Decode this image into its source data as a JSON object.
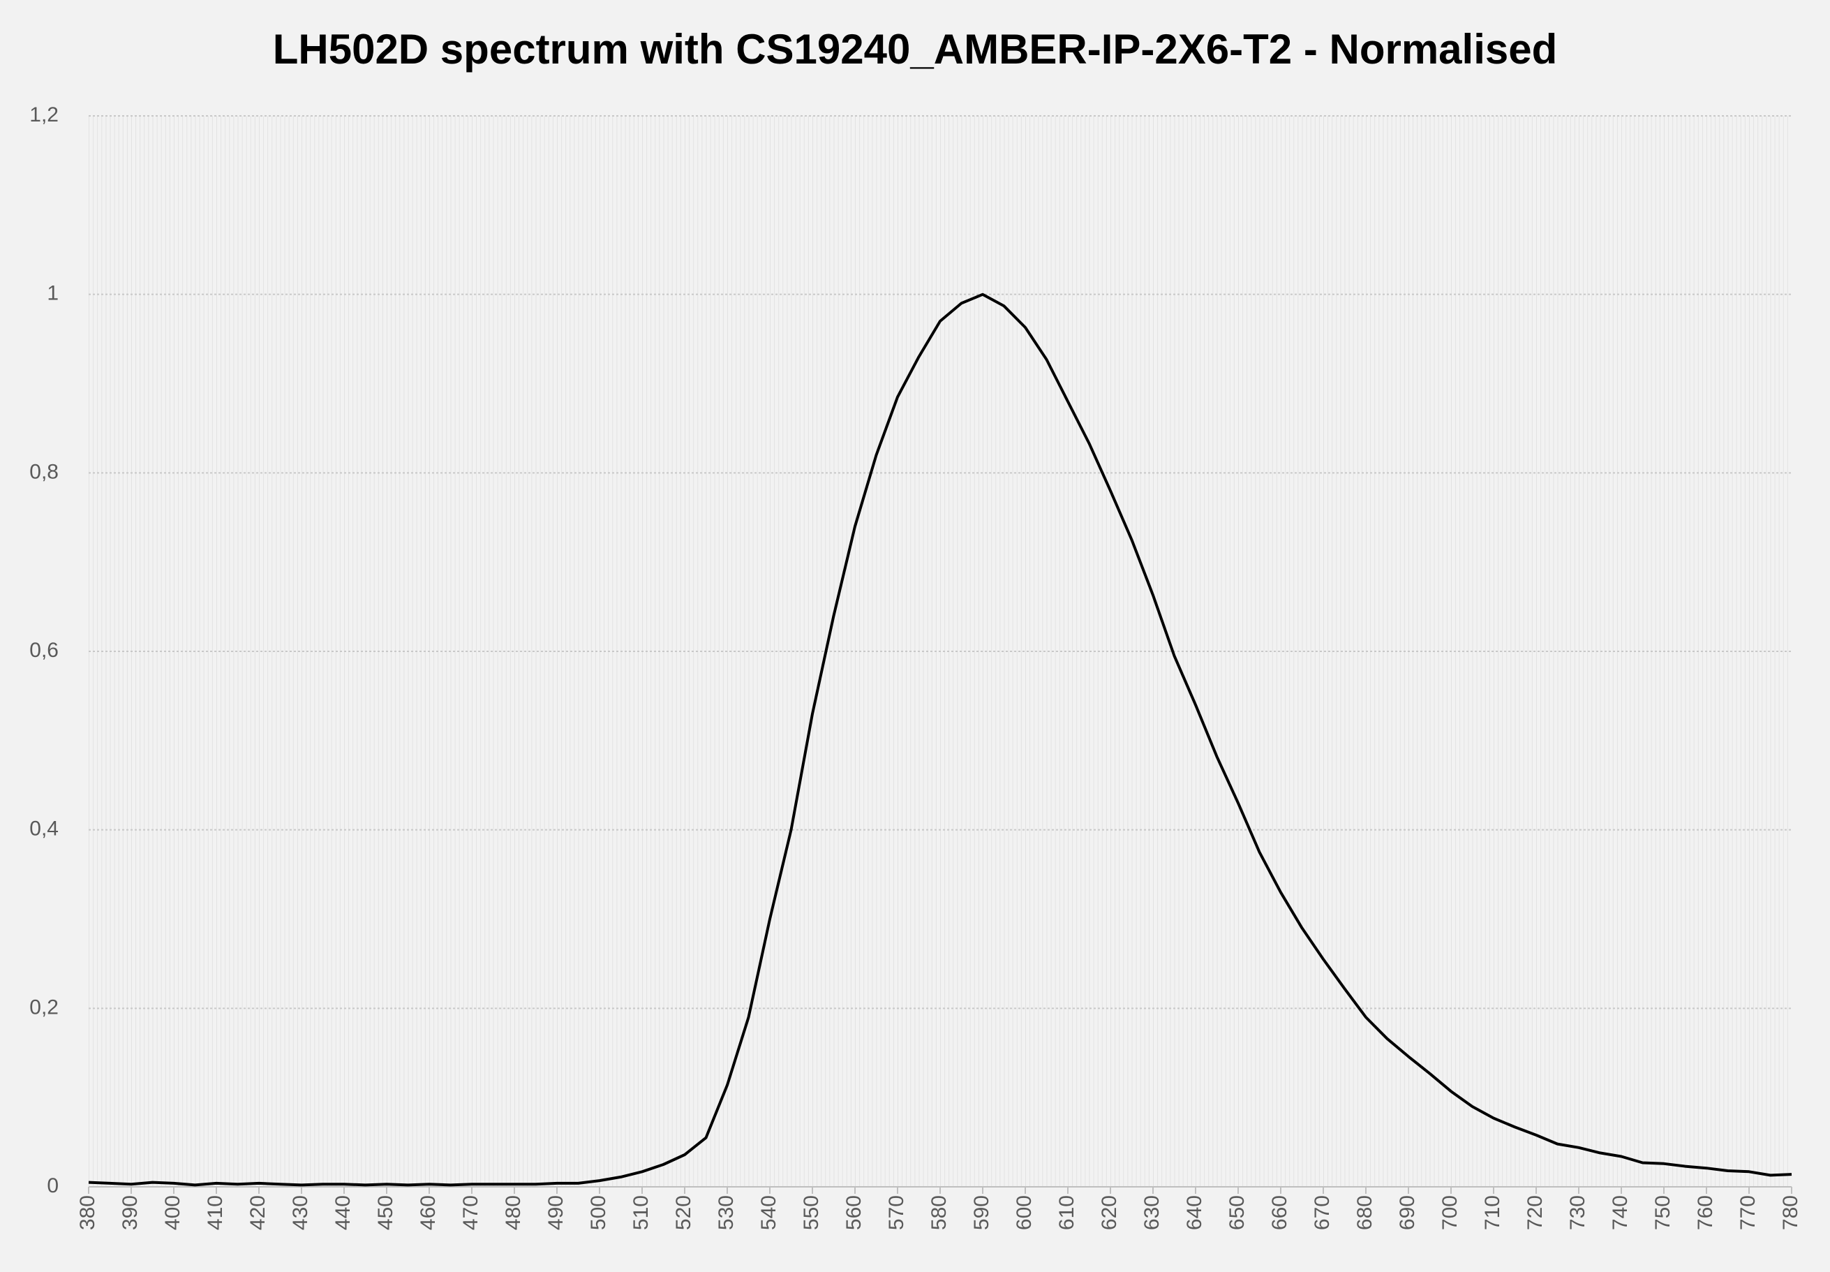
{
  "chart_data": {
    "type": "line",
    "title": "LH502D spectrum with CS19240_AMBER-IP-2X6-T2 - Normalised",
    "x": [
      380,
      385,
      390,
      395,
      400,
      405,
      410,
      415,
      420,
      425,
      430,
      435,
      440,
      445,
      450,
      455,
      460,
      465,
      470,
      475,
      480,
      485,
      490,
      495,
      500,
      505,
      510,
      515,
      520,
      525,
      530,
      535,
      540,
      545,
      550,
      555,
      560,
      565,
      570,
      575,
      580,
      585,
      590,
      595,
      600,
      605,
      610,
      615,
      620,
      625,
      630,
      635,
      640,
      645,
      650,
      655,
      660,
      665,
      670,
      675,
      680,
      685,
      690,
      695,
      700,
      705,
      710,
      715,
      720,
      725,
      730,
      735,
      740,
      745,
      750,
      755,
      760,
      765,
      770,
      775,
      780
    ],
    "series": [
      {
        "color": "#000000",
        "values": [
          0.005,
          0.004,
          0.003,
          0.005,
          0.004,
          0.002,
          0.004,
          0.003,
          0.004,
          0.003,
          0.002,
          0.003,
          0.003,
          0.002,
          0.003,
          0.002,
          0.003,
          0.002,
          0.003,
          0.003,
          0.003,
          0.003,
          0.004,
          0.004,
          0.007,
          0.011,
          0.017,
          0.025,
          0.036,
          0.055,
          0.114,
          0.19,
          0.3,
          0.4,
          0.53,
          0.64,
          0.74,
          0.82,
          0.885,
          0.93,
          0.97,
          0.99,
          1.0,
          0.987,
          0.963,
          0.927,
          0.88,
          0.833,
          0.78,
          0.725,
          0.663,
          0.595,
          0.54,
          0.482,
          0.43,
          0.375,
          0.33,
          0.29,
          0.255,
          0.222,
          0.19,
          0.166,
          0.146,
          0.127,
          0.107,
          0.09,
          0.077,
          0.067,
          0.058,
          0.048,
          0.044,
          0.038,
          0.034,
          0.027,
          0.026,
          0.023,
          0.021,
          0.018,
          0.017,
          0.013,
          0.014
        ]
      }
    ],
    "xlim": [
      380,
      780
    ],
    "xticks": [
      380,
      390,
      400,
      410,
      420,
      430,
      440,
      450,
      460,
      470,
      480,
      490,
      500,
      510,
      520,
      530,
      540,
      550,
      560,
      570,
      580,
      590,
      600,
      610,
      620,
      630,
      640,
      650,
      660,
      670,
      680,
      690,
      700,
      710,
      720,
      730,
      740,
      750,
      760,
      770,
      780
    ],
    "ylim": [
      0,
      1.2
    ],
    "yticks": [
      0,
      {
        "value": 0.2,
        "label": "0,2"
      },
      {
        "value": 0.4,
        "label": "0,4"
      },
      {
        "value": 0.6,
        "label": "0,6"
      },
      {
        "value": 0.8,
        "label": "0,8"
      },
      1,
      {
        "value": 1.2,
        "label": "1,2"
      }
    ],
    "grid": true
  }
}
